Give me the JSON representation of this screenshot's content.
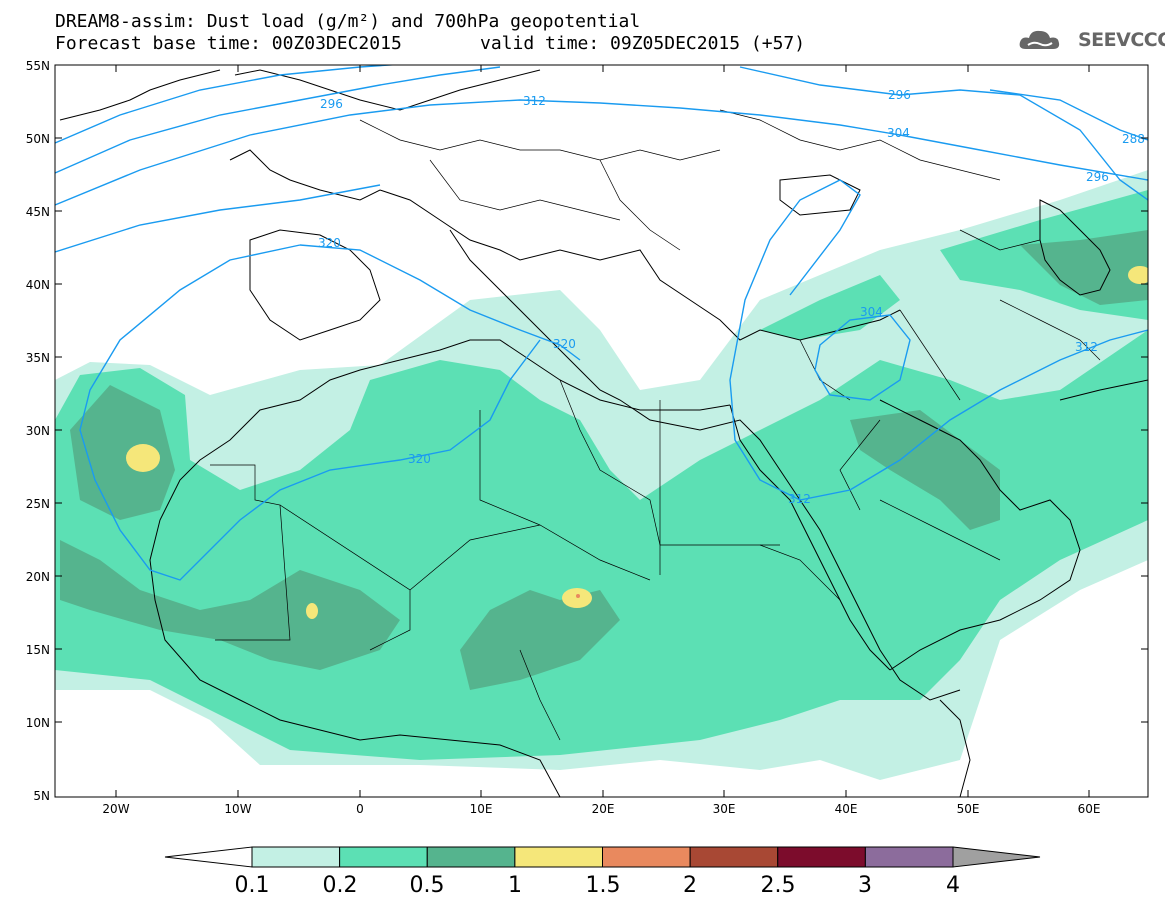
{
  "header": {
    "title_line1": "DREAM8-assim: Dust load (g/m²) and 700hPa geopotential",
    "title_line2": "Forecast base time: 00Z03DEC2015",
    "valid_time": "valid time: 09Z05DEC2015 (+57)",
    "logo_text": "SEEVCCC"
  },
  "map": {
    "lat_labels": [
      "55N",
      "50N",
      "45N",
      "40N",
      "35N",
      "30N",
      "25N",
      "20N",
      "15N",
      "10N",
      "5N"
    ],
    "lon_labels": [
      "20W",
      "10W",
      "0",
      "10E",
      "20E",
      "30E",
      "40E",
      "50E",
      "60E"
    ],
    "contour_labels": [
      "296",
      "312",
      "296",
      "304",
      "288",
      "296",
      "320",
      "320",
      "304",
      "312",
      "320",
      "312"
    ],
    "colors": {
      "land_border": "#000000",
      "contour": "#1a9bf0",
      "dust_01": "#c3f0e4",
      "dust_02": "#5ce0b4",
      "dust_05": "#55b48e",
      "dust_1": "#f5e77a",
      "dust_15": "#e9895e",
      "dust_2": "#a84834",
      "dust_25": "#7c0c2c",
      "dust_3": "#8c6c9c",
      "dust_4": "#a0a0a0"
    }
  },
  "colorbar": {
    "labels": [
      "0.1",
      "0.2",
      "0.5",
      "1",
      "1.5",
      "2",
      "2.5",
      "3",
      "4"
    ],
    "colors": [
      "#c3f0e4",
      "#5ce0b4",
      "#55b48e",
      "#f5e77a",
      "#e9895e",
      "#a84834",
      "#7c0c2c",
      "#8c6c9c"
    ]
  }
}
